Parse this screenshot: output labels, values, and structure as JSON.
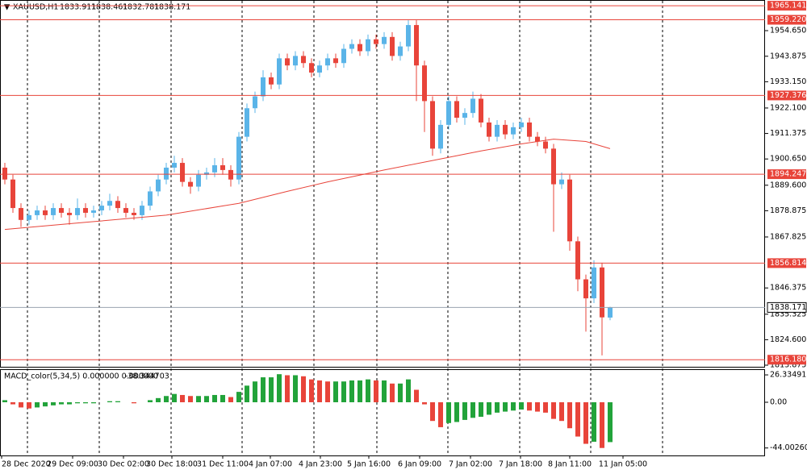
{
  "chart_data": {
    "type": "candlestick",
    "symbol": "XAUUSD,H1",
    "bull_color": "#5ab4e8",
    "bear_color": "#e8443a",
    "candles": [
      [
        1897,
        1899,
        1890,
        1892
      ],
      [
        1892,
        1894,
        1878,
        1880
      ],
      [
        1880,
        1882,
        1872,
        1875
      ],
      [
        1875,
        1879,
        1873,
        1877
      ],
      [
        1877,
        1881,
        1875,
        1879
      ],
      [
        1879,
        1881,
        1875,
        1877
      ],
      [
        1877,
        1882,
        1875,
        1880
      ],
      [
        1880,
        1882,
        1876,
        1878
      ],
      [
        1878,
        1880,
        1873,
        1877
      ],
      [
        1877,
        1884,
        1875,
        1880
      ],
      [
        1880,
        1882,
        1876,
        1878
      ],
      [
        1878,
        1881,
        1876,
        1879
      ],
      [
        1879,
        1883,
        1877,
        1881
      ],
      [
        1881,
        1886,
        1879,
        1883
      ],
      [
        1883,
        1885,
        1878,
        1880
      ],
      [
        1880,
        1882,
        1876,
        1878
      ],
      [
        1878,
        1880,
        1875,
        1877
      ],
      [
        1877,
        1883,
        1875,
        1881
      ],
      [
        1881,
        1889,
        1879,
        1887
      ],
      [
        1887,
        1894,
        1885,
        1892
      ],
      [
        1892,
        1899,
        1890,
        1897
      ],
      [
        1897,
        1902,
        1895,
        1899
      ],
      [
        1899,
        1901,
        1889,
        1891
      ],
      [
        1891,
        1893,
        1886,
        1889
      ],
      [
        1889,
        1896,
        1887,
        1894
      ],
      [
        1894,
        1897,
        1892,
        1895
      ],
      [
        1895,
        1901,
        1893,
        1898
      ],
      [
        1898,
        1901,
        1894,
        1896
      ],
      [
        1896,
        1898,
        1889,
        1892
      ],
      [
        1892,
        1912,
        1890,
        1910
      ],
      [
        1910,
        1924,
        1908,
        1922
      ],
      [
        1922,
        1929,
        1920,
        1927
      ],
      [
        1927,
        1938,
        1925,
        1935
      ],
      [
        1935,
        1937,
        1930,
        1932
      ],
      [
        1932,
        1945,
        1930,
        1943
      ],
      [
        1943,
        1945,
        1938,
        1940
      ],
      [
        1940,
        1946,
        1938,
        1944
      ],
      [
        1944,
        1946,
        1939,
        1941
      ],
      [
        1941,
        1943,
        1935,
        1937
      ],
      [
        1937,
        1942,
        1935,
        1940
      ],
      [
        1940,
        1945,
        1938,
        1943
      ],
      [
        1943,
        1945,
        1939,
        1941
      ],
      [
        1941,
        1949,
        1939,
        1947
      ],
      [
        1947,
        1951,
        1945,
        1949
      ],
      [
        1949,
        1951,
        1944,
        1946
      ],
      [
        1946,
        1953,
        1944,
        1951
      ],
      [
        1951,
        1953,
        1947,
        1949
      ],
      [
        1949,
        1954,
        1947,
        1952
      ],
      [
        1952,
        1954,
        1942,
        1944
      ],
      [
        1944,
        1950,
        1942,
        1948
      ],
      [
        1948,
        1959,
        1946,
        1957
      ],
      [
        1957,
        1959,
        1925,
        1940
      ],
      [
        1940,
        1942,
        1912,
        1925
      ],
      [
        1925,
        1927,
        1902,
        1905
      ],
      [
        1905,
        1917,
        1903,
        1915
      ],
      [
        1915,
        1927,
        1913,
        1925
      ],
      [
        1925,
        1927,
        1916,
        1918
      ],
      [
        1918,
        1922,
        1915,
        1920
      ],
      [
        1920,
        1929,
        1918,
        1926
      ],
      [
        1926,
        1928,
        1914,
        1916
      ],
      [
        1916,
        1918,
        1908,
        1910
      ],
      [
        1910,
        1917,
        1908,
        1915
      ],
      [
        1915,
        1917,
        1909,
        1911
      ],
      [
        1911,
        1916,
        1909,
        1914
      ],
      [
        1914,
        1918,
        1912,
        1916
      ],
      [
        1916,
        1918,
        1908,
        1910
      ],
      [
        1910,
        1912,
        1906,
        1908
      ],
      [
        1908,
        1910,
        1903,
        1905
      ],
      [
        1905,
        1907,
        1870,
        1890
      ],
      [
        1890,
        1895,
        1888,
        1892
      ],
      [
        1892,
        1894,
        1862,
        1866
      ],
      [
        1866,
        1868,
        1845,
        1850
      ],
      [
        1850,
        1852,
        1828,
        1842
      ],
      [
        1842,
        1858,
        1840,
        1855
      ],
      [
        1855,
        1857,
        1818,
        1834
      ],
      [
        1833.911,
        1838.461,
        1832.781,
        1838.171
      ]
    ],
    "ma": {
      "color": "#e8443a",
      "x": [
        0,
        10,
        20,
        29,
        35,
        40,
        47,
        53,
        59,
        64,
        68,
        72,
        75
      ],
      "values": [
        1871,
        1874,
        1877,
        1882,
        1887,
        1891,
        1896,
        1900,
        1904,
        1907,
        1909,
        1908,
        1905
      ]
    },
    "ylim": [
      1813.2,
      1967.54
    ],
    "yticks": [
      {
        "value": 1954.65,
        "label": "1954.650"
      },
      1943.875,
      {
        "value": 1933.15,
        "label": "1933.150"
      },
      {
        "value": 1922.1,
        "label": "1922.100"
      },
      1911.375,
      {
        "value": 1900.65,
        "label": "1900.650"
      },
      {
        "value": 1889.6,
        "label": "1889.600"
      },
      1878.875,
      1867.825,
      1846.375,
      1835.325,
      {
        "value": 1824.6,
        "label": "1824.600"
      },
      1813.875
    ],
    "levels": [
      1965.141,
      {
        "value": 1959.22,
        "label": "1959.220"
      },
      1927.376,
      1894.247,
      1856.814,
      {
        "value": 1816.18,
        "label": "1816.180"
      }
    ],
    "xlim": [
      -0.6,
      94.2
    ],
    "xticks": [
      {
        "value": -0.4,
        "label": "28 Dec 2020"
      },
      {
        "value": 8.4,
        "label": "29 Dec 09:00"
      },
      {
        "value": 14.7,
        "label": "30 Dec 02:00"
      },
      {
        "value": 20.7,
        "label": "30 Dec 18:00"
      },
      {
        "value": 27,
        "label": "31 Dec 11:00"
      },
      {
        "value": 32.9,
        "label": "4 Jan 07:00"
      },
      {
        "value": 39.1,
        "label": "4 Jan 23:00"
      },
      {
        "value": 45.1,
        "label": "5 Jan 16:00"
      },
      {
        "value": 51.4,
        "label": "6 Jan 09:00"
      },
      {
        "value": 57.7,
        "label": "7 Jan 02:00"
      },
      {
        "value": 63.9,
        "label": "7 Jan 18:00"
      },
      {
        "value": 70,
        "label": "8 Jan 11:00"
      },
      {
        "value": 76.6,
        "label": "11 Jan 05:00"
      }
    ],
    "macd": {
      "label": "MACD_color(5,34,5) 0.000000 0.000000",
      "up_color": "#22a33a",
      "down_color": "#e8443a",
      "values": [
        2,
        -2,
        -5,
        -6,
        -5,
        -4,
        -3,
        -2,
        -2,
        -1,
        -1,
        -1,
        0,
        1,
        1,
        0,
        -1,
        0,
        2,
        4,
        6,
        8,
        7,
        6,
        6,
        6,
        7,
        7,
        5,
        10,
        16,
        20,
        24,
        24,
        27,
        26,
        26,
        25,
        22,
        21,
        20,
        20,
        20,
        21,
        21,
        22,
        21,
        21,
        18,
        18,
        22,
        12,
        -2,
        -18,
        -24,
        -20,
        -19,
        -17,
        -15,
        -14,
        -12,
        -10,
        -9,
        -8,
        -7,
        -8,
        -9,
        -10,
        -16,
        -18,
        -25,
        -33,
        -40,
        -38,
        -44,
        -38.344703
      ],
      "ylim": [
        -51.2,
        31.8
      ],
      "yticks": [
        {
          "value": 26.334913,
          "label": "26.334913"
        },
        {
          "value": 0,
          "label": "0.00"
        },
        {
          "value": -44.002601,
          "label": "-44.002601"
        }
      ]
    }
  }
}
